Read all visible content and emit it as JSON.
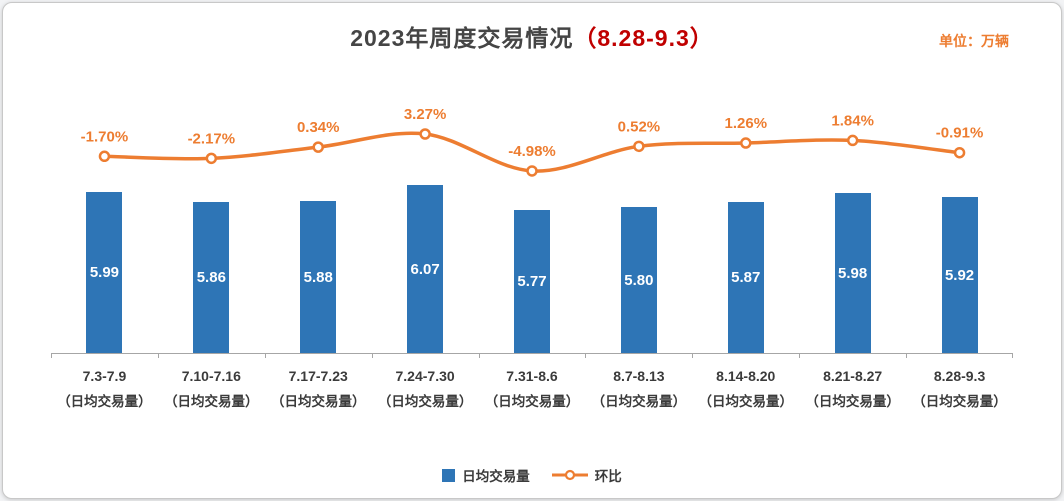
{
  "title": {
    "main": "2023年周度交易情况",
    "range": "（8.28-9.3）"
  },
  "unit_label": "单位：万辆",
  "legend": {
    "bars": "日均交易量",
    "line": "环比"
  },
  "colors": {
    "bar": "#2e75b6",
    "line": "#ed7d31",
    "title": "#454545",
    "title_range": "#c00000",
    "pct_label": "#ed7d31",
    "bar_label": "#ffffff",
    "axis": "#a6a6a6"
  },
  "chart_data": {
    "type": "bar",
    "subtype": "combo-bar-line",
    "title": "2023年周度交易情况（8.28-9.3）",
    "unit": "万辆",
    "categories": [
      "7.3-7.9",
      "7.10-7.16",
      "7.17-7.23",
      "7.24-7.30",
      "7.31-8.6",
      "8.7-8.13",
      "8.14-8.20",
      "8.21-8.27",
      "8.28-9.3"
    ],
    "category_sublabel": "（日均交易量）",
    "series": [
      {
        "name": "日均交易量",
        "type": "bar",
        "values": [
          5.99,
          5.86,
          5.88,
          6.07,
          5.77,
          5.8,
          5.87,
          5.98,
          5.92
        ]
      },
      {
        "name": "环比",
        "type": "line",
        "values_pct": [
          -1.7,
          -2.17,
          0.34,
          3.27,
          -4.98,
          0.52,
          1.26,
          1.84,
          -0.91
        ]
      }
    ],
    "pct_labels": [
      "-1.70%",
      "-2.17%",
      "0.34%",
      "3.27%",
      "-4.98%",
      "0.52%",
      "1.26%",
      "1.84%",
      "-0.91%"
    ],
    "layout_hints": {
      "bar_axis_min_est": 4.0,
      "bar_axis_max_est": 6.6,
      "line_axis_min_est": -6,
      "line_axis_max_est": 4,
      "grid": false,
      "legend_position": "bottom",
      "bar_labels_inside": true
    }
  }
}
